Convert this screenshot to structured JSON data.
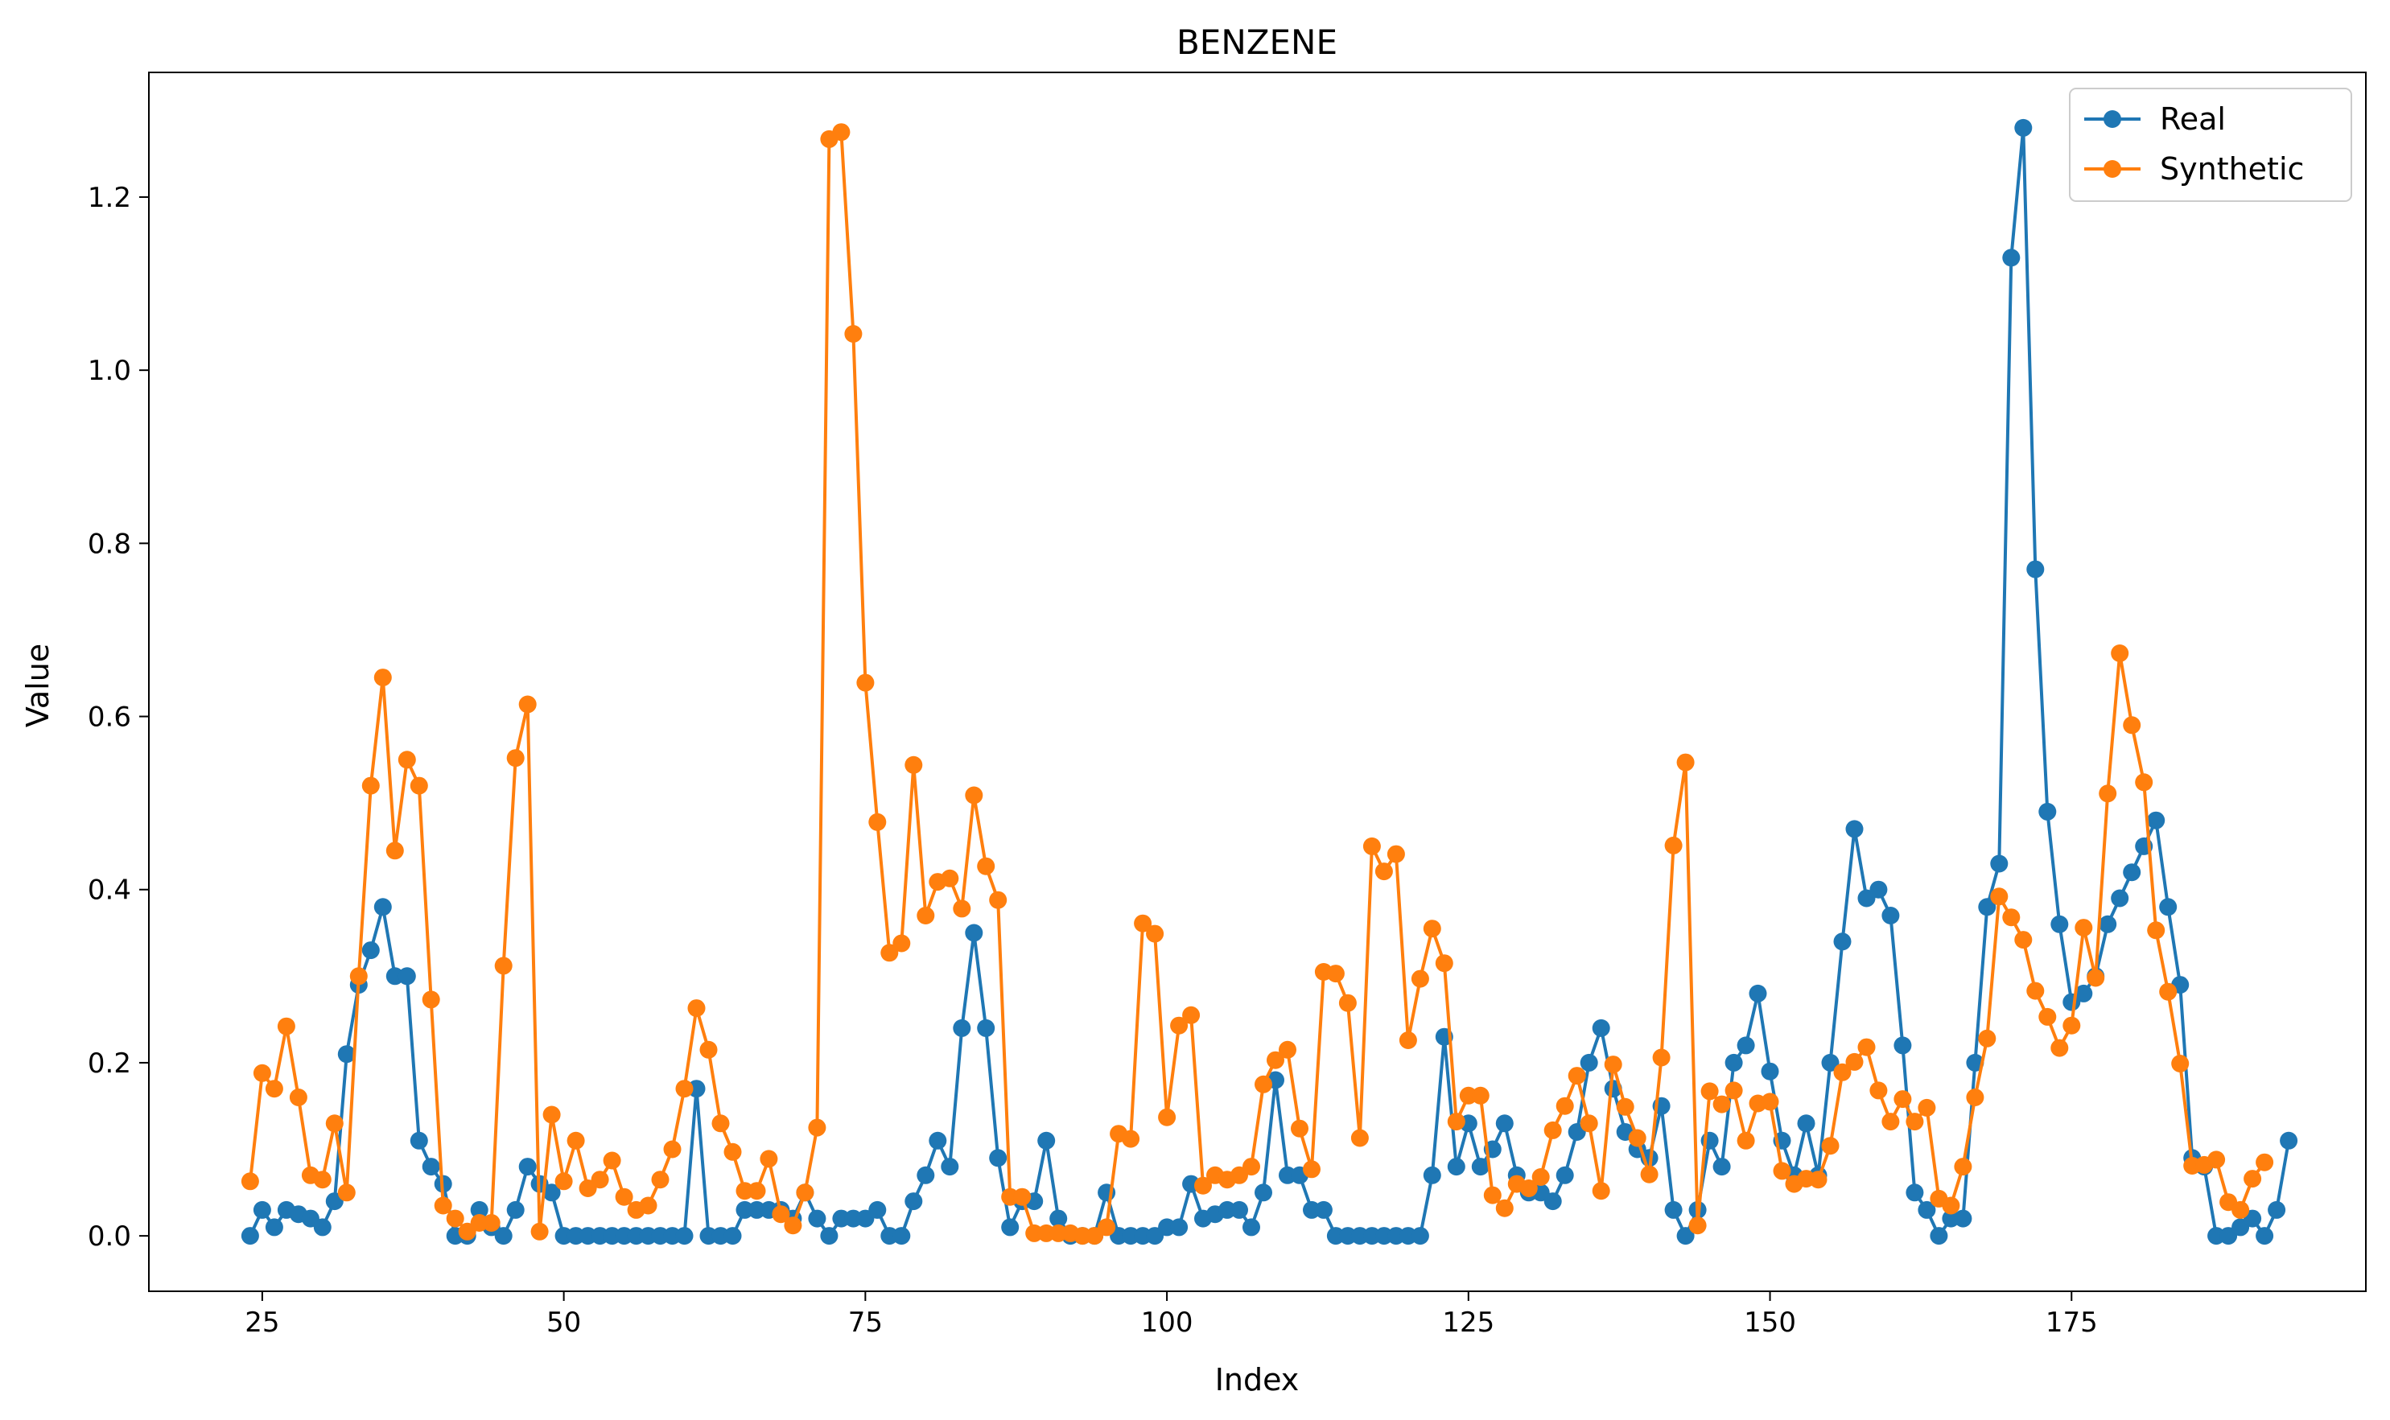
{
  "chart_data": {
    "type": "line",
    "title": "BENZENE",
    "xlabel": "Index",
    "ylabel": "Value",
    "xlim": [
      15.6,
      199.4
    ],
    "ylim": [
      -0.064,
      1.344
    ],
    "xticks": [
      25,
      50,
      75,
      100,
      125,
      150,
      175
    ],
    "yticks": [
      0.0,
      0.2,
      0.4,
      0.6,
      0.8,
      1.0,
      1.2
    ],
    "x_start": 24,
    "grid": false,
    "legend_position": "top-right",
    "series": [
      {
        "name": "Real",
        "color": "#1f77b4",
        "marker": "circle",
        "values": [
          0.0,
          0.03,
          0.01,
          0.03,
          0.025,
          0.02,
          0.01,
          0.04,
          0.21,
          0.29,
          0.33,
          0.38,
          0.3,
          0.3,
          0.11,
          0.08,
          0.06,
          0.0,
          0.0,
          0.03,
          0.01,
          0.0,
          0.03,
          0.08,
          0.06,
          0.05,
          0.0,
          0.0,
          0.0,
          0.0,
          0.0,
          0.0,
          0.0,
          0.0,
          0.0,
          0.0,
          0.0,
          0.17,
          0.0,
          0.0,
          0.0,
          0.03,
          0.03,
          0.03,
          0.03,
          0.02,
          0.05,
          0.02,
          0.0,
          0.02,
          0.02,
          0.02,
          0.03,
          0.0,
          0.0,
          0.04,
          0.07,
          0.11,
          0.08,
          0.24,
          0.35,
          0.24,
          0.09,
          0.01,
          0.04,
          0.04,
          0.11,
          0.02,
          0.0,
          0.0,
          0.0,
          0.05,
          0.0,
          0.0,
          0.0,
          0.0,
          0.01,
          0.01,
          0.06,
          0.02,
          0.025,
          0.03,
          0.03,
          0.01,
          0.05,
          0.18,
          0.07,
          0.07,
          0.03,
          0.03,
          0.0,
          0.0,
          0.0,
          0.0,
          0.0,
          0.0,
          0.0,
          0.0,
          0.07,
          0.23,
          0.08,
          0.13,
          0.08,
          0.1,
          0.13,
          0.07,
          0.05,
          0.05,
          0.04,
          0.07,
          0.12,
          0.2,
          0.24,
          0.17,
          0.12,
          0.1,
          0.09,
          0.15,
          0.03,
          0.0,
          0.03,
          0.11,
          0.08,
          0.2,
          0.22,
          0.28,
          0.19,
          0.11,
          0.07,
          0.13,
          0.07,
          0.2,
          0.34,
          0.47,
          0.39,
          0.4,
          0.37,
          0.22,
          0.05,
          0.03,
          0.0,
          0.02,
          0.02,
          0.2,
          0.38,
          0.43,
          1.13,
          1.28,
          0.77,
          0.49,
          0.36,
          0.27,
          0.28,
          0.3,
          0.36,
          0.39,
          0.42,
          0.45,
          0.48,
          0.38,
          0.29,
          0.09,
          0.08,
          0.0,
          0.0,
          0.01,
          0.02,
          0.0,
          0.03,
          0.11
        ]
      },
      {
        "name": "Synthetic",
        "color": "#ff7f0e",
        "marker": "circle",
        "values": [
          0.063,
          0.188,
          0.17,
          0.242,
          0.16,
          0.07,
          0.065,
          0.13,
          0.05,
          0.3,
          0.52,
          0.645,
          0.445,
          0.55,
          0.52,
          0.273,
          0.035,
          0.02,
          0.005,
          0.015,
          0.015,
          0.312,
          0.552,
          0.614,
          0.005,
          0.14,
          0.063,
          0.11,
          0.055,
          0.065,
          0.087,
          0.045,
          0.03,
          0.035,
          0.065,
          0.1,
          0.17,
          0.263,
          0.215,
          0.13,
          0.097,
          0.052,
          0.052,
          0.089,
          0.025,
          0.012,
          0.05,
          0.125,
          1.267,
          1.275,
          1.042,
          0.639,
          0.478,
          0.327,
          0.338,
          0.544,
          0.37,
          0.409,
          0.413,
          0.378,
          0.509,
          0.427,
          0.388,
          0.045,
          0.045,
          0.003,
          0.003,
          0.003,
          0.003,
          0.0,
          0.0,
          0.01,
          0.118,
          0.112,
          0.361,
          0.349,
          0.137,
          0.243,
          0.255,
          0.058,
          0.07,
          0.065,
          0.07,
          0.08,
          0.175,
          0.203,
          0.215,
          0.124,
          0.077,
          0.305,
          0.303,
          0.269,
          0.113,
          0.45,
          0.421,
          0.441,
          0.226,
          0.297,
          0.355,
          0.315,
          0.132,
          0.162,
          0.162,
          0.047,
          0.032,
          0.06,
          0.055,
          0.068,
          0.122,
          0.15,
          0.185,
          0.13,
          0.052,
          0.198,
          0.149,
          0.113,
          0.071,
          0.206,
          0.451,
          0.547,
          0.012,
          0.167,
          0.152,
          0.168,
          0.11,
          0.153,
          0.155,
          0.075,
          0.06,
          0.066,
          0.065,
          0.104,
          0.189,
          0.201,
          0.218,
          0.168,
          0.132,
          0.158,
          0.132,
          0.148,
          0.043,
          0.035,
          0.08,
          0.16,
          0.228,
          0.392,
          0.368,
          0.342,
          0.283,
          0.253,
          0.217,
          0.243,
          0.356,
          0.298,
          0.511,
          0.673,
          0.59,
          0.524,
          0.353,
          0.282,
          0.199,
          0.081,
          0.082,
          0.088,
          0.039,
          0.03,
          0.066,
          0.085
        ]
      }
    ]
  }
}
